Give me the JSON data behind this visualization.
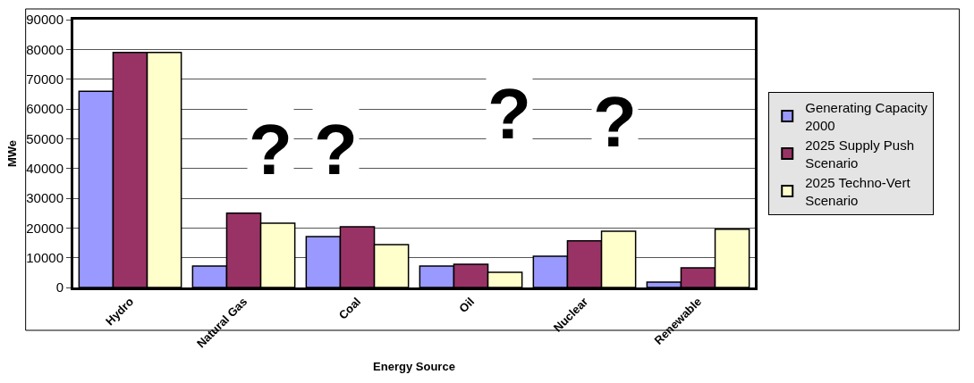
{
  "chart_data": {
    "type": "bar",
    "xlabel": "Energy Source",
    "ylabel": "MWe",
    "categories": [
      "Hydro",
      "Natural Gas",
      "Coal",
      "Oil",
      "Nuclear",
      "Renewable"
    ],
    "series": [
      {
        "name": "Generating Capacity 2000",
        "color": "#9999ff",
        "values": [
          65900,
          7200,
          17100,
          7200,
          10500,
          1800
        ]
      },
      {
        "name": "2025 Supply Push Scenario",
        "color": "#993366",
        "values": [
          79000,
          25000,
          20400,
          7800,
          15700,
          6600
        ]
      },
      {
        "name": "2025 Techno-Vert Scenario",
        "color": "#ffffcc",
        "values": [
          79000,
          21600,
          14400,
          5100,
          18900,
          19600
        ]
      }
    ],
    "ylim": [
      0,
      90000
    ],
    "yticks": [
      0,
      10000,
      20000,
      30000,
      40000,
      50000,
      60000,
      70000,
      80000,
      90000
    ],
    "grid": "y",
    "legend": "right",
    "annotations": [
      "?",
      "?",
      "?",
      "?"
    ]
  }
}
